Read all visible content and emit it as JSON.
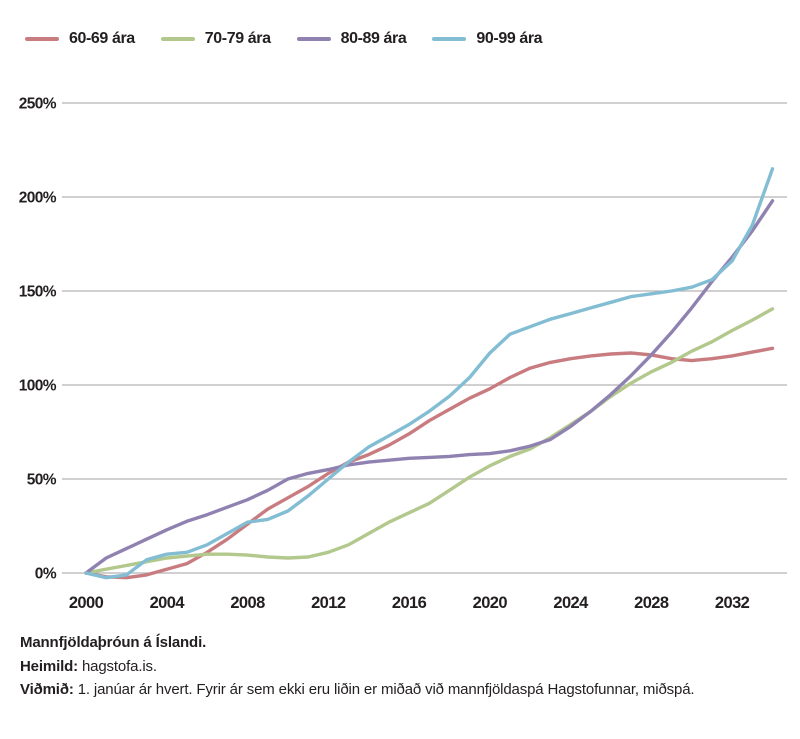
{
  "chart_data": {
    "type": "line",
    "title": "Mannfjöldaþróun á Íslandi.",
    "x_years": [
      2000,
      2001,
      2002,
      2003,
      2004,
      2005,
      2006,
      2007,
      2008,
      2009,
      2010,
      2011,
      2012,
      2013,
      2014,
      2015,
      2016,
      2017,
      2018,
      2019,
      2020,
      2021,
      2022,
      2023,
      2024,
      2025,
      2026,
      2027,
      2028,
      2029,
      2030,
      2031,
      2032,
      2033,
      2034
    ],
    "series": [
      {
        "name": "60-69 ára",
        "color": "#c97c80",
        "values": [
          0,
          -2,
          -2.5,
          -1,
          2,
          5,
          11,
          18,
          26,
          34,
          40,
          46,
          53,
          59,
          63,
          68,
          74,
          81,
          87,
          93,
          98,
          104,
          109,
          112,
          114,
          115.5,
          116.5,
          117,
          116,
          114,
          113,
          114,
          115.5,
          117.5,
          119.5
        ]
      },
      {
        "name": "70-79 ára",
        "color": "#b2c88c",
        "values": [
          0,
          2,
          4,
          6,
          8,
          9,
          10,
          10,
          9.5,
          8.5,
          8,
          8.5,
          11,
          15,
          21,
          27,
          32,
          37,
          44,
          51,
          57,
          62,
          66,
          72,
          79,
          86,
          94,
          101,
          107,
          112,
          118,
          123,
          129,
          134.5,
          140.5
        ]
      },
      {
        "name": "80-89 ára",
        "color": "#8f82b1",
        "values": [
          0,
          8,
          13,
          18,
          23,
          27.5,
          31,
          35,
          39,
          44,
          50,
          53,
          55,
          57.5,
          59,
          60,
          61,
          61.5,
          62,
          63,
          63.5,
          65,
          67.5,
          71,
          78,
          86,
          95,
          105,
          116,
          128,
          141,
          155,
          168,
          182,
          198
        ]
      },
      {
        "name": "90-99 ára",
        "color": "#82bdd3",
        "values": [
          0,
          -2.5,
          -1,
          7,
          10,
          11,
          15,
          21,
          27,
          28.5,
          33,
          41,
          50,
          59,
          67,
          73,
          79,
          86,
          94,
          104,
          117,
          127,
          131,
          135,
          138,
          141,
          144,
          147,
          148.5,
          150,
          152,
          156,
          166,
          185,
          215
        ]
      }
    ],
    "ylim": [
      0,
      250
    ],
    "ytick_values": [
      0,
      50,
      100,
      150,
      200,
      250
    ],
    "ytick_labels": [
      "0%",
      "50%",
      "100%",
      "150%",
      "200%",
      "250%"
    ],
    "xtick_values": [
      2000,
      2004,
      2008,
      2012,
      2016,
      2020,
      2024,
      2028,
      2032
    ],
    "grid": "horizontal-only",
    "gridline_color": "#b5b5b5",
    "axis_text_color": "#231f20",
    "legend_position": "top-left",
    "xlabel": "",
    "ylabel": ""
  },
  "footer": {
    "caption": "Mannfjöldaþróun á Íslandi.",
    "source_label": "Heimild:",
    "source_text": "hagstofa.is.",
    "reference_label": "Viðmið:",
    "reference_text": "1. janúar ár hvert. Fyrir ár sem ekki eru liðin er miðað við mannfjöldaspá Hagstofunnar, miðspá."
  }
}
